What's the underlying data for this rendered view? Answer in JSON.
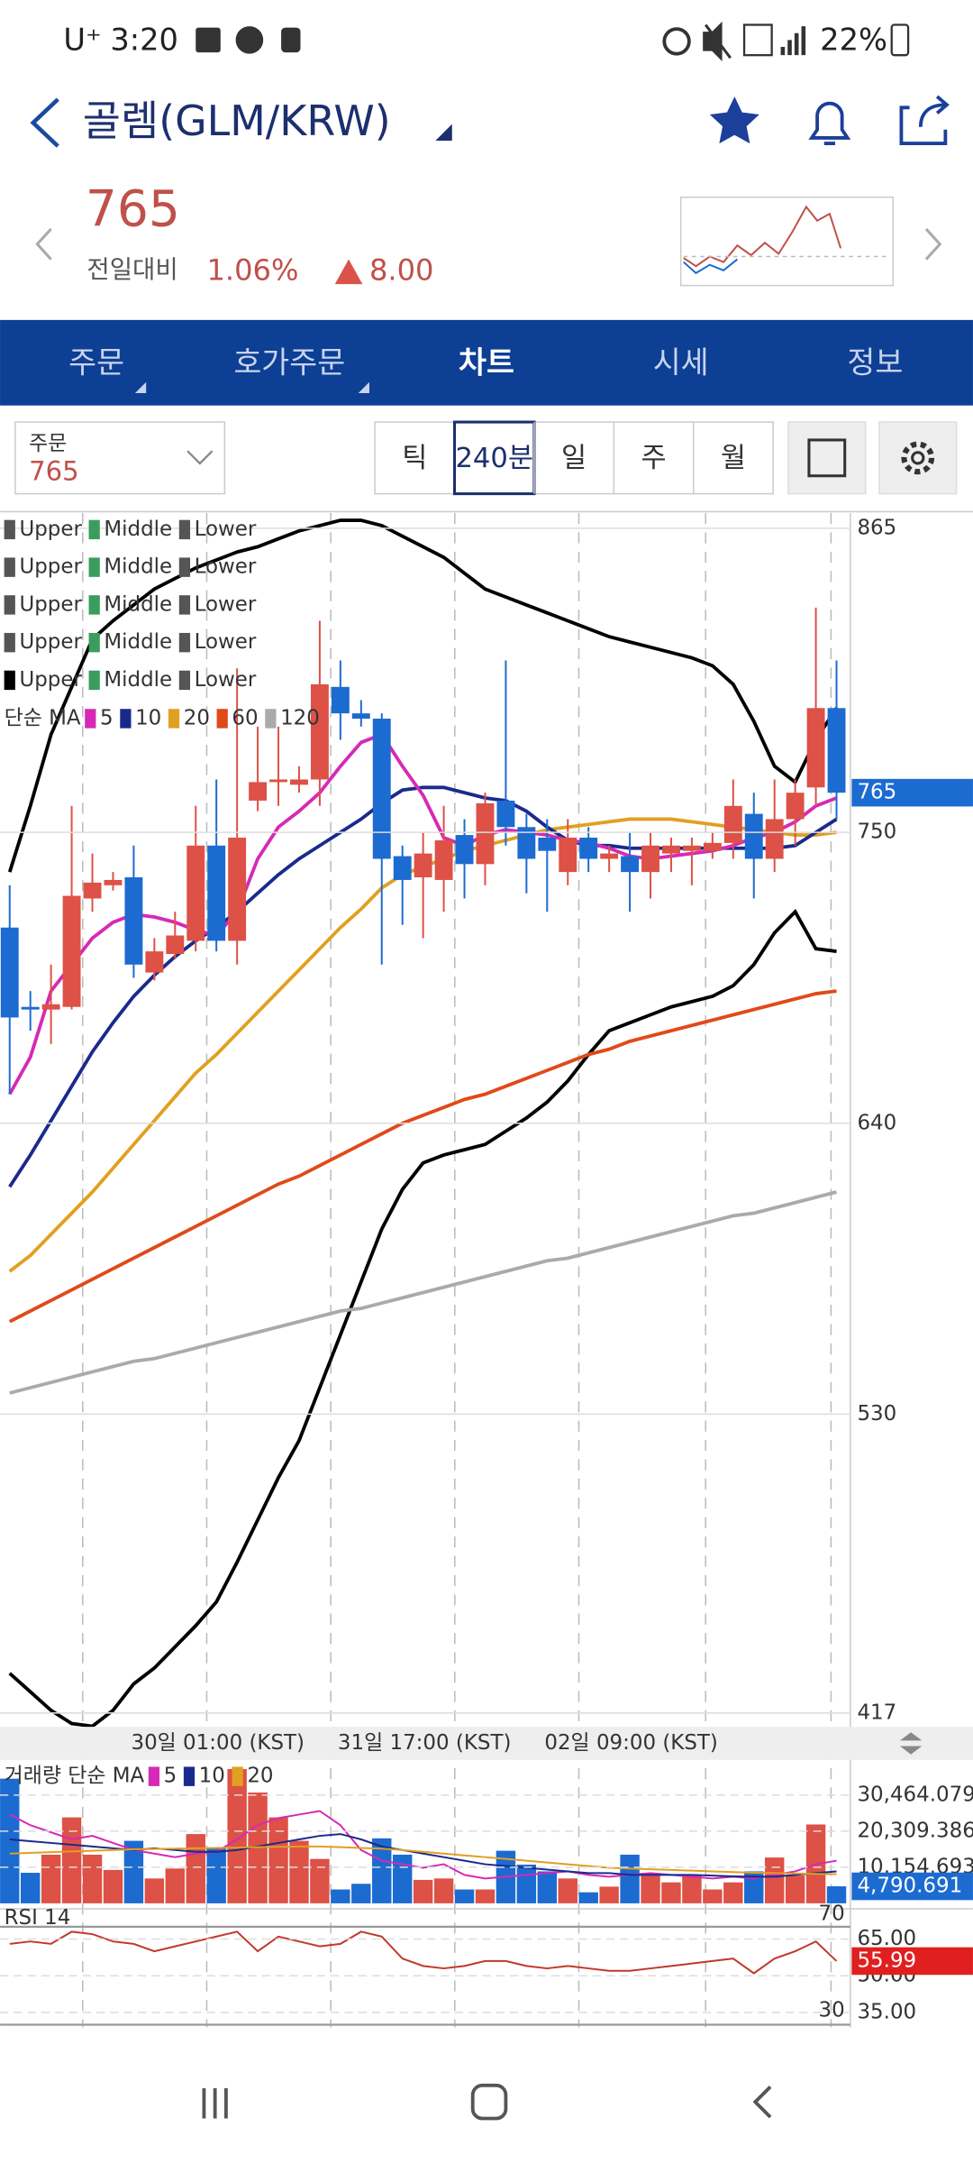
{
  "status_bar": {
    "carrier": "U⁺",
    "time": "3:20",
    "battery": "22%"
  },
  "header": {
    "title": "골렘(GLM/KRW)",
    "price": "765",
    "change_label": "전일대비",
    "change_pct": "1.06%",
    "change_amt": "8.00"
  },
  "tabs": [
    "주문",
    "호가주문",
    "차트",
    "시세",
    "정보"
  ],
  "selected_tab": 2,
  "toolbar": {
    "order_label": "주문",
    "order_value": "765",
    "periods": [
      "틱",
      "240분",
      "일",
      "주",
      "월"
    ],
    "selected_period": 1
  },
  "time_labels": [
    "30일 01:00 (KST)",
    "31일 17:00 (KST)",
    "02일 09:00 (KST)"
  ],
  "chart_data": [
    {
      "type": "candlestick",
      "ylim": [
        417,
        865
      ],
      "yticks": [
        417,
        530,
        640,
        750,
        865
      ],
      "grid": true,
      "up_color": "#dd5146",
      "down_color": "#1c6bd1",
      "current_color": "#1c6bd1",
      "open": [
        714,
        684,
        683,
        684,
        725,
        730,
        733,
        697,
        704,
        709,
        745,
        709,
        762,
        769,
        768,
        770,
        805,
        795,
        793,
        741,
        733,
        732,
        749,
        738,
        762,
        752,
        748,
        735,
        748,
        740,
        741,
        735,
        742,
        743,
        743,
        746,
        757,
        740,
        755,
        767,
        797
      ],
      "high": [
        730,
        690,
        700,
        760,
        742,
        735,
        745,
        710,
        720,
        760,
        770,
        812,
        790,
        790,
        775,
        830,
        815,
        800,
        795,
        745,
        750,
        760,
        755,
        765,
        815,
        757,
        755,
        755,
        752,
        745,
        750,
        750,
        748,
        748,
        750,
        770,
        765,
        770,
        770,
        835,
        815
      ],
      "low": [
        651,
        675,
        670,
        683,
        720,
        728,
        695,
        694,
        702,
        705,
        705,
        700,
        758,
        760,
        765,
        760,
        785,
        790,
        700,
        715,
        710,
        720,
        725,
        730,
        745,
        727,
        720,
        730,
        735,
        735,
        720,
        725,
        735,
        730,
        740,
        740,
        725,
        735,
        745,
        760,
        755
      ],
      "close": [
        680,
        683,
        685,
        726,
        731,
        732,
        700,
        705,
        711,
        745,
        709,
        748,
        769,
        770,
        770,
        806,
        795,
        793,
        740,
        732,
        742,
        747,
        738,
        761,
        752,
        740,
        743,
        748,
        740,
        742,
        735,
        745,
        745,
        745,
        746,
        760,
        740,
        755,
        765,
        797,
        765
      ],
      "bands": [
        {
          "color": "#000000",
          "values": [
            735,
            760,
            787,
            805,
            823,
            830,
            836,
            842,
            846,
            850,
            853,
            856,
            858,
            861,
            864,
            866,
            868,
            868,
            866,
            862,
            858,
            854,
            848,
            842,
            839,
            836,
            833,
            830,
            827,
            824,
            822,
            820,
            818,
            816,
            813,
            806,
            792,
            775,
            769,
            785,
            797
          ]
        },
        {
          "color": "#000000",
          "values": [
            432,
            425,
            418,
            413,
            412,
            418,
            428,
            434,
            442,
            450,
            459,
            474,
            490,
            506,
            520,
            540,
            560,
            580,
            600,
            615,
            625,
            628,
            630,
            632,
            637,
            642,
            648,
            656,
            666,
            675,
            678,
            681,
            684,
            686,
            688,
            692,
            700,
            712,
            720,
            706,
            705
          ]
        }
      ],
      "bb_legend": [
        [
          {
            "name": "Upper",
            "color": "#555555"
          },
          {
            "name": "Middle",
            "color": "#3a9d5d"
          },
          {
            "name": "Lower",
            "color": "#555555"
          }
        ],
        [
          {
            "name": "Upper",
            "color": "#555555"
          },
          {
            "name": "Middle",
            "color": "#3a9d5d"
          },
          {
            "name": "Lower",
            "color": "#555555"
          }
        ],
        [
          {
            "name": "Upper",
            "color": "#555555"
          },
          {
            "name": "Middle",
            "color": "#3a9d5d"
          },
          {
            "name": "Lower",
            "color": "#555555"
          }
        ],
        [
          {
            "name": "Upper",
            "color": "#555555"
          },
          {
            "name": "Middle",
            "color": "#3a9d5d"
          },
          {
            "name": "Lower",
            "color": "#555555"
          }
        ],
        [
          {
            "name": "Upper",
            "color": "#000000"
          },
          {
            "name": "Middle",
            "color": "#3a9d5d"
          },
          {
            "name": "Lower",
            "color": "#555555"
          }
        ]
      ],
      "ma_title": "단순 MA",
      "series": [
        {
          "name": "5",
          "color": "#d62ab5",
          "values": [
            651,
            665,
            690,
            700,
            710,
            716,
            719,
            718,
            716,
            713,
            711,
            720,
            740,
            752,
            758,
            765,
            775,
            784,
            787,
            775,
            764,
            748,
            745,
            749,
            751,
            750,
            749,
            747,
            746,
            744,
            741,
            740,
            741,
            742,
            743,
            745,
            748,
            750,
            754,
            760,
            763
          ]
        },
        {
          "name": "10",
          "color": "#1a2a8c",
          "values": [
            616,
            628,
            641,
            654,
            667,
            678,
            688,
            696,
            703,
            709,
            714,
            720,
            727,
            734,
            740,
            745,
            750,
            755,
            761,
            766,
            767,
            767,
            765,
            763,
            762,
            758,
            752,
            747,
            745,
            745,
            744,
            744,
            744,
            744,
            744,
            744,
            744,
            744,
            745,
            750,
            755
          ]
        },
        {
          "name": "20",
          "color": "#e0a020",
          "values": [
            584,
            590,
            598,
            606,
            614,
            623,
            632,
            641,
            650,
            659,
            666,
            674,
            682,
            690,
            698,
            706,
            714,
            721,
            729,
            734,
            737,
            740,
            743,
            745,
            747,
            749,
            751,
            752,
            753,
            754,
            755,
            755,
            755,
            754,
            753,
            752,
            751,
            750,
            749,
            749,
            750
          ]
        },
        {
          "name": "60",
          "color": "#e04a1a",
          "values": [
            565,
            569,
            573,
            577,
            581,
            585,
            589,
            593,
            597,
            601,
            605,
            609,
            613,
            617,
            620,
            624,
            628,
            632,
            636,
            640,
            643,
            646,
            649,
            651,
            654,
            657,
            660,
            663,
            666,
            668,
            671,
            673,
            675,
            677,
            679,
            681,
            683,
            685,
            687,
            689,
            690
          ]
        },
        {
          "name": "120",
          "color": "#aaaaaa",
          "values": [
            538,
            540,
            542,
            544,
            546,
            548,
            550,
            551,
            553,
            555,
            557,
            559,
            561,
            563,
            565,
            567,
            569,
            570,
            572,
            574,
            576,
            578,
            580,
            582,
            584,
            586,
            588,
            589,
            591,
            593,
            595,
            597,
            599,
            601,
            603,
            605,
            606,
            608,
            610,
            612,
            614
          ]
        }
      ]
    },
    {
      "type": "bar",
      "title": "거래량 단순 MA",
      "ylim": [
        0,
        40000
      ],
      "yticks": [
        {
          "value": 30464.079,
          "label": "30,464.079"
        },
        {
          "value": 20309.386,
          "label": "20,309.386"
        },
        {
          "value": 10154.693,
          "label": "10,154.693"
        }
      ],
      "up_color": "#dd5146",
      "down_color": "#1c6bd1",
      "current_color": "#1c6bd1",
      "values": [
        35100,
        8600,
        13700,
        24200,
        13700,
        9400,
        17600,
        7000,
        9800,
        19500,
        15600,
        37800,
        31200,
        24200,
        17600,
        12500,
        3900,
        5500,
        18300,
        13700,
        6600,
        7000,
        3900,
        3900,
        14800,
        10900,
        9000,
        7000,
        3100,
        4700,
        13700,
        7800,
        5900,
        7800,
        3900,
        5900,
        9000,
        12900,
        7800,
        22200,
        4790.691
      ],
      "value_labels": [
        null,
        null,
        null,
        null,
        null,
        null,
        null,
        null,
        null,
        null,
        null,
        null,
        null,
        null,
        null,
        null,
        null,
        null,
        null,
        null,
        null,
        null,
        null,
        null,
        null,
        null,
        null,
        null,
        null,
        null,
        null,
        null,
        null,
        null,
        null,
        null,
        null,
        null,
        null,
        null,
        "4,790.691"
      ],
      "series": [
        {
          "name": "5",
          "color": "#d62ab5",
          "values": [
            25000,
            22000,
            20000,
            18000,
            19000,
            17000,
            15000,
            14000,
            13000,
            14000,
            14500,
            18000,
            22000,
            24000,
            25000,
            26000,
            22000,
            15000,
            12000,
            11000,
            10000,
            11000,
            8000,
            7000,
            7500,
            8000,
            8500,
            9000,
            8000,
            7500,
            8000,
            8500,
            8000,
            7500,
            7000,
            7500,
            7000,
            8000,
            9000,
            11000,
            12000
          ]
        },
        {
          "name": "10",
          "color": "#1a2a8c",
          "values": [
            18000,
            17500,
            17000,
            16500,
            16000,
            15500,
            15000,
            15500,
            15000,
            14500,
            14500,
            15000,
            16000,
            17000,
            18000,
            19000,
            19500,
            18000,
            16000,
            15000,
            14000,
            13000,
            12000,
            11000,
            10500,
            10000,
            9500,
            9000,
            8500,
            8500,
            8000,
            8000,
            8000,
            8000,
            7800,
            7600,
            7500,
            7500,
            8000,
            8500,
            9000
          ]
        },
        {
          "name": "20",
          "color": "#e0a020",
          "values": [
            14000,
            14200,
            14400,
            14600,
            14800,
            15000,
            15200,
            15300,
            15400,
            15500,
            15600,
            15700,
            15800,
            15900,
            16000,
            16000,
            15800,
            15600,
            15400,
            15000,
            14500,
            14000,
            13500,
            13000,
            12500,
            12000,
            11500,
            11000,
            10500,
            10000,
            9800,
            9600,
            9400,
            9200,
            9000,
            8800,
            8600,
            8500,
            8400,
            8300,
            8200
          ]
        }
      ]
    },
    {
      "type": "line",
      "title": "RSI 14",
      "ylim": [
        30,
        70
      ],
      "levels": [
        70,
        30
      ],
      "yticks": [
        {
          "value": 65,
          "label": "65.00"
        },
        {
          "value": 50,
          "label": "50.00"
        },
        {
          "value": 35,
          "label": "35.00"
        }
      ],
      "color": "#c0392b",
      "current_color": "#e02020",
      "values": [
        63,
        64,
        63,
        68,
        67,
        64,
        63,
        60,
        62,
        64,
        66,
        68,
        60,
        66,
        64,
        62,
        63,
        68,
        66,
        57,
        54,
        53,
        54,
        56,
        56,
        54,
        53,
        54,
        53,
        52,
        52,
        53,
        54,
        55,
        56,
        57,
        51,
        57,
        60,
        64,
        55.99
      ]
    }
  ]
}
